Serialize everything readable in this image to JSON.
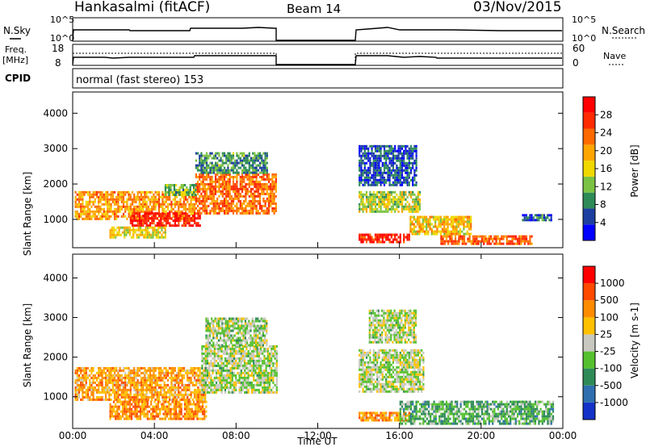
{
  "header": {
    "station": "Hankasalmi (fitACF)",
    "beam": "Beam 14",
    "date": "03/Nov/2015"
  },
  "panels": {
    "nsky": {
      "label": "N.Sky",
      "ticks": [
        "10^5",
        "10^0"
      ],
      "right_label": "N.Search",
      "right_ticks": [
        "10^5",
        "10^0"
      ]
    },
    "freq": {
      "label_line1": "Freq.",
      "label_line2": "[MHz]",
      "ticks": [
        "18",
        "8"
      ],
      "right_label": "Nave",
      "right_ticks": [
        "60",
        "0"
      ]
    },
    "cpid": {
      "label": "CPID",
      "value": "normal (fast stereo) 153"
    }
  },
  "colors": {
    "power": [
      "#0000ff",
      "#1e3fa0",
      "#2e8b57",
      "#7cc242",
      "#f0d800",
      "#ffa500",
      "#ff6a00",
      "#ff2a00",
      "#ff0000"
    ],
    "velocity": [
      "#1432c8",
      "#2f6fb0",
      "#2e8b57",
      "#55c02e",
      "#c8c8c0",
      "#ffc000",
      "#ff8c00",
      "#ff4a00",
      "#ff0000"
    ]
  },
  "chart_data": [
    {
      "type": "heatmap",
      "name": "power",
      "ylabel": "Slant Range [km]",
      "yticks": [
        "4000",
        "3000",
        "2000",
        "1000"
      ],
      "ylim": [
        200,
        4600
      ],
      "colorbar_label": "Power [dB]",
      "colorbar_ticks": [
        "28",
        "24",
        "20",
        "16",
        "12",
        "8",
        "4"
      ],
      "colorbar_range": [
        0,
        32
      ],
      "regions": [
        {
          "t0": 0.1,
          "t1": 6.0,
          "r0": 1000,
          "r1": 1800,
          "level": 0.65
        },
        {
          "t0": 2.8,
          "t1": 6.2,
          "r0": 850,
          "r1": 1200,
          "level": 0.9
        },
        {
          "t0": 1.8,
          "t1": 4.5,
          "r0": 500,
          "r1": 800,
          "level": 0.5
        },
        {
          "t0": 6.0,
          "t1": 10.0,
          "r0": 1200,
          "r1": 2300,
          "level": 0.72
        },
        {
          "t0": 4.5,
          "t1": 6.0,
          "r0": 1700,
          "r1": 2000,
          "level": 0.35
        },
        {
          "t0": 6.0,
          "t1": 9.5,
          "r0": 2300,
          "r1": 2900,
          "level": 0.3
        },
        {
          "t0": 14.0,
          "t1": 17.0,
          "r0": 1200,
          "r1": 1800,
          "level": 0.45
        },
        {
          "t0": 14.0,
          "t1": 16.8,
          "r0": 2000,
          "r1": 3100,
          "level": 0.18
        },
        {
          "t0": 14.0,
          "t1": 16.5,
          "r0": 380,
          "r1": 600,
          "level": 0.88
        },
        {
          "t0": 16.5,
          "t1": 19.5,
          "r0": 600,
          "r1": 1100,
          "level": 0.55
        },
        {
          "t0": 18.0,
          "t1": 22.5,
          "r0": 300,
          "r1": 550,
          "level": 0.75
        },
        {
          "t0": 22.0,
          "t1": 23.5,
          "r0": 950,
          "r1": 1150,
          "level": 0.2
        }
      ]
    },
    {
      "type": "heatmap",
      "name": "velocity",
      "xlabel": "Time UT",
      "xticks": [
        "00:00",
        "04:00",
        "08:00",
        "12:00",
        "16:00",
        "20:00",
        "00:00"
      ],
      "xlim": [
        0,
        24
      ],
      "ylabel": "Slant Range [km]",
      "yticks": [
        "4000",
        "3000",
        "2000",
        "1000"
      ],
      "ylim": [
        200,
        4600
      ],
      "colorbar_label": "Velocity [m s-1]",
      "colorbar_ticks": [
        "1000",
        "500",
        "100",
        "25",
        "-25",
        "-100",
        "-500",
        "-1000"
      ],
      "colorbar_range": [
        -1000,
        1000
      ],
      "regions": [
        {
          "t0": 0.1,
          "t1": 6.5,
          "r0": 950,
          "r1": 1750,
          "level": 0.68
        },
        {
          "t0": 1.8,
          "t1": 6.5,
          "r0": 450,
          "r1": 900,
          "level": 0.72
        },
        {
          "t0": 6.3,
          "t1": 10.0,
          "r0": 1100,
          "r1": 2300,
          "level": 0.47
        },
        {
          "t0": 6.5,
          "t1": 9.5,
          "r0": 2300,
          "r1": 3000,
          "level": 0.45
        },
        {
          "t0": 14.0,
          "t1": 17.2,
          "r0": 1100,
          "r1": 2200,
          "level": 0.47
        },
        {
          "t0": 14.5,
          "t1": 16.8,
          "r0": 2400,
          "r1": 3200,
          "level": 0.47
        },
        {
          "t0": 14.0,
          "t1": 16.5,
          "r0": 380,
          "r1": 620,
          "level": 0.7
        },
        {
          "t0": 16.0,
          "t1": 23.5,
          "r0": 300,
          "r1": 900,
          "level": 0.35
        }
      ]
    }
  ]
}
